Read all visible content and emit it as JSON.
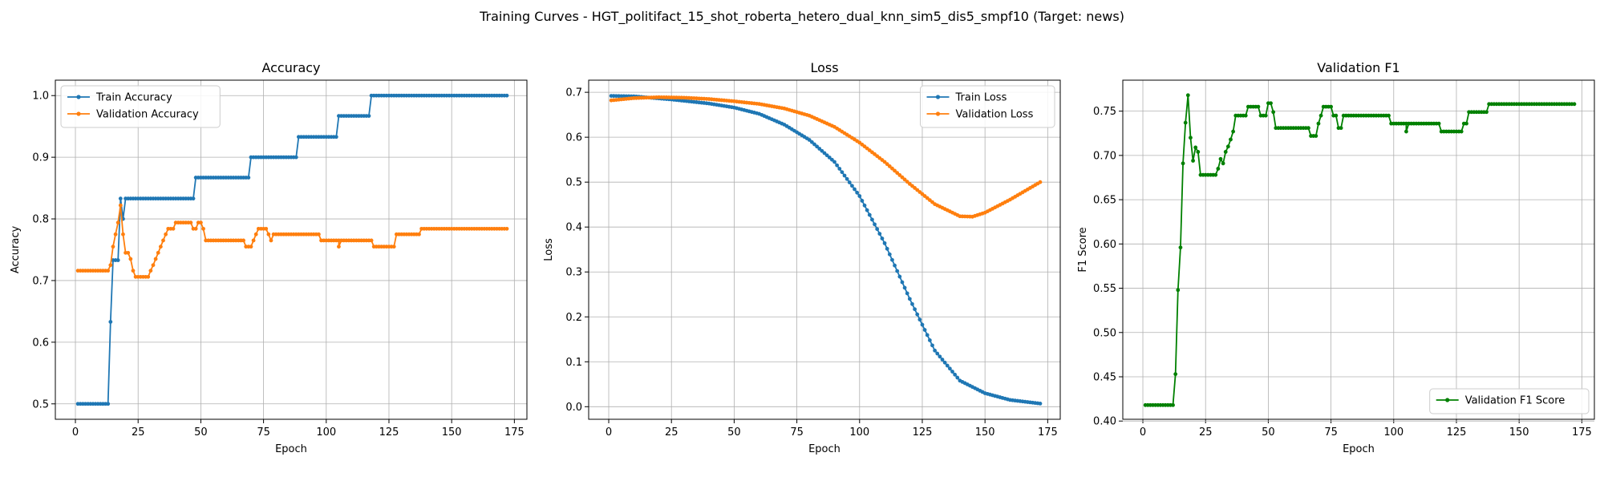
{
  "figure": {
    "title": "Training Curves - HGT_politifact_15_shot_roberta_hetero_dual_knn_sim5_dis5_smpf10 (Target: news)"
  },
  "chart_data": [
    {
      "id": "accuracy",
      "type": "line",
      "title": "Accuracy",
      "xlabel": "Epoch",
      "ylabel": "Accuracy",
      "xlim": [
        -8,
        180
      ],
      "ylim": [
        0.475,
        1.025
      ],
      "xticks": [
        0,
        25,
        50,
        75,
        100,
        125,
        150,
        175
      ],
      "yticks": [
        0.5,
        0.6,
        0.7,
        0.8,
        0.9,
        1.0
      ],
      "ytick_labels": [
        "0.5",
        "0.6",
        "0.7",
        "0.8",
        "0.9",
        "1.0"
      ],
      "grid": true,
      "legend": "top-left",
      "series": [
        {
          "name": "Train Accuracy",
          "color": "#1f77b4",
          "segments": [
            [
              1,
              13,
              0.5
            ],
            [
              16,
              17,
              0.733
            ],
            [
              20,
              47,
              0.833
            ],
            [
              48,
              69,
              0.867
            ],
            [
              70,
              88,
              0.9
            ],
            [
              89,
              104,
              0.933
            ],
            [
              105,
              117,
              0.967
            ],
            [
              118,
              172,
              1.0
            ]
          ],
          "points": [
            [
              14,
              0.633
            ],
            [
              15,
              0.733
            ],
            [
              18,
              0.833
            ],
            [
              19,
              0.8
            ]
          ]
        },
        {
          "name": "Validation Accuracy",
          "color": "#ff7f0e",
          "segments": [
            [
              1,
              13,
              0.716
            ],
            [
              25,
              29,
              0.706
            ],
            [
              41,
              46,
              0.794
            ],
            [
              53,
              67,
              0.765
            ],
            [
              74,
              76,
              0.784
            ],
            [
              79,
              97,
              0.775
            ],
            [
              98,
              105,
              0.765
            ],
            [
              106,
              118,
              0.765
            ],
            [
              119,
              127,
              0.755
            ],
            [
              128,
              137,
              0.775
            ],
            [
              138,
              172,
              0.784
            ]
          ],
          "points": [
            [
              14,
              0.725
            ],
            [
              15,
              0.755
            ],
            [
              16,
              0.775
            ],
            [
              17,
              0.794
            ],
            [
              18,
              0.822
            ],
            [
              19,
              0.775
            ],
            [
              20,
              0.745
            ],
            [
              21,
              0.745
            ],
            [
              22,
              0.735
            ],
            [
              23,
              0.716
            ],
            [
              24,
              0.706
            ],
            [
              30,
              0.716
            ],
            [
              31,
              0.725
            ],
            [
              32,
              0.735
            ],
            [
              33,
              0.745
            ],
            [
              34,
              0.755
            ],
            [
              35,
              0.765
            ],
            [
              36,
              0.775
            ],
            [
              37,
              0.784
            ],
            [
              38,
              0.784
            ],
            [
              39,
              0.784
            ],
            [
              40,
              0.794
            ],
            [
              47,
              0.784
            ],
            [
              48,
              0.784
            ],
            [
              49,
              0.794
            ],
            [
              50,
              0.794
            ],
            [
              51,
              0.784
            ],
            [
              52,
              0.765
            ],
            [
              68,
              0.755
            ],
            [
              69,
              0.755
            ],
            [
              70,
              0.755
            ],
            [
              71,
              0.765
            ],
            [
              72,
              0.775
            ],
            [
              73,
              0.784
            ],
            [
              77,
              0.775
            ],
            [
              78,
              0.765
            ],
            [
              105,
              0.755
            ]
          ]
        }
      ]
    },
    {
      "id": "loss",
      "type": "line",
      "title": "Loss",
      "xlabel": "Epoch",
      "ylabel": "Loss",
      "xlim": [
        -8,
        180
      ],
      "ylim": [
        -0.028,
        0.727
      ],
      "xticks": [
        0,
        25,
        50,
        75,
        100,
        125,
        150,
        175
      ],
      "yticks": [
        0.0,
        0.1,
        0.2,
        0.3,
        0.4,
        0.5,
        0.6,
        0.7
      ],
      "ytick_labels": [
        "0.0",
        "0.1",
        "0.2",
        "0.3",
        "0.4",
        "0.5",
        "0.6",
        "0.7"
      ],
      "grid": true,
      "legend": "top-right",
      "series": [
        {
          "name": "Train Loss",
          "color": "#1f77b4",
          "curve": [
            [
              1,
              0.692
            ],
            [
              10,
              0.691
            ],
            [
              25,
              0.684
            ],
            [
              40,
              0.675
            ],
            [
              50,
              0.666
            ],
            [
              60,
              0.652
            ],
            [
              70,
              0.628
            ],
            [
              80,
              0.594
            ],
            [
              90,
              0.545
            ],
            [
              100,
              0.469
            ],
            [
              110,
              0.364
            ],
            [
              120,
              0.24
            ],
            [
              130,
              0.125
            ],
            [
              140,
              0.058
            ],
            [
              150,
              0.03
            ],
            [
              160,
              0.015
            ],
            [
              172,
              0.007
            ]
          ]
        },
        {
          "name": "Validation Loss",
          "color": "#ff7f0e",
          "curve": [
            [
              1,
              0.682
            ],
            [
              10,
              0.687
            ],
            [
              20,
              0.689
            ],
            [
              30,
              0.688
            ],
            [
              40,
              0.685
            ],
            [
              50,
              0.68
            ],
            [
              60,
              0.674
            ],
            [
              70,
              0.664
            ],
            [
              80,
              0.648
            ],
            [
              90,
              0.623
            ],
            [
              100,
              0.588
            ],
            [
              110,
              0.545
            ],
            [
              120,
              0.496
            ],
            [
              130,
              0.451
            ],
            [
              140,
              0.424
            ],
            [
              145,
              0.423
            ],
            [
              150,
              0.432
            ],
            [
              160,
              0.461
            ],
            [
              172,
              0.5
            ]
          ]
        }
      ]
    },
    {
      "id": "f1",
      "type": "line",
      "title": "Validation F1",
      "xlabel": "Epoch",
      "ylabel": "F1 Score",
      "xlim": [
        -8,
        180
      ],
      "ylim": [
        0.402,
        0.785
      ],
      "xticks": [
        0,
        25,
        50,
        75,
        100,
        125,
        150,
        175
      ],
      "yticks": [
        0.4,
        0.45,
        0.5,
        0.55,
        0.6,
        0.65,
        0.7,
        0.75
      ],
      "ytick_labels": [
        "0.40",
        "0.45",
        "0.50",
        "0.55",
        "0.60",
        "0.65",
        "0.70",
        "0.75"
      ],
      "grid": true,
      "legend": "bottom-right",
      "series": [
        {
          "name": "Validation F1 Score",
          "color": "#008000",
          "segments": [
            [
              1,
              12,
              0.418
            ],
            [
              23,
              29,
              0.678
            ],
            [
              37,
              41,
              0.745
            ],
            [
              42,
              46,
              0.755
            ],
            [
              47,
              49,
              0.745
            ],
            [
              53,
              66,
              0.731
            ],
            [
              72,
              75,
              0.755
            ],
            [
              80,
              98,
              0.745
            ],
            [
              99,
              118,
              0.736
            ],
            [
              119,
              127,
              0.727
            ],
            [
              130,
              137,
              0.749
            ],
            [
              138,
              172,
              0.758
            ]
          ],
          "points": [
            [
              13,
              0.453
            ],
            [
              14,
              0.548
            ],
            [
              15,
              0.596
            ],
            [
              16,
              0.691
            ],
            [
              17,
              0.737
            ],
            [
              18,
              0.768
            ],
            [
              19,
              0.72
            ],
            [
              20,
              0.694
            ],
            [
              21,
              0.709
            ],
            [
              22,
              0.704
            ],
            [
              30,
              0.685
            ],
            [
              31,
              0.696
            ],
            [
              32,
              0.691
            ],
            [
              33,
              0.704
            ],
            [
              34,
              0.71
            ],
            [
              35,
              0.718
            ],
            [
              36,
              0.727
            ],
            [
              50,
              0.759
            ],
            [
              51,
              0.759
            ],
            [
              52,
              0.749
            ],
            [
              67,
              0.722
            ],
            [
              68,
              0.722
            ],
            [
              69,
              0.722
            ],
            [
              70,
              0.736
            ],
            [
              71,
              0.745
            ],
            [
              76,
              0.745
            ],
            [
              77,
              0.745
            ],
            [
              78,
              0.731
            ],
            [
              79,
              0.731
            ],
            [
              105,
              0.727
            ],
            [
              128,
              0.736
            ],
            [
              129,
              0.736
            ]
          ]
        }
      ]
    }
  ]
}
